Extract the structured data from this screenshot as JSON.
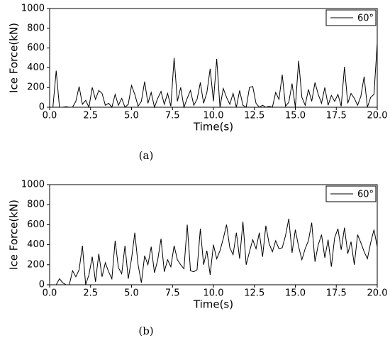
{
  "chart_data": [
    {
      "type": "line",
      "caption": "(a)",
      "xlabel": "Time(s)",
      "ylabel": "Ice Force(kN)",
      "x": [
        0,
        0.2,
        0.4,
        0.6,
        0.8,
        1.0,
        1.2,
        1.4,
        1.6,
        1.8,
        2.0,
        2.2,
        2.4,
        2.6,
        2.8,
        3.0,
        3.2,
        3.4,
        3.6,
        3.8,
        4.0,
        4.2,
        4.4,
        4.6,
        4.8,
        5.0,
        5.2,
        5.4,
        5.6,
        5.8,
        6.0,
        6.2,
        6.4,
        6.6,
        6.8,
        7.0,
        7.2,
        7.4,
        7.6,
        7.8,
        8.0,
        8.2,
        8.4,
        8.6,
        8.8,
        9.0,
        9.2,
        9.4,
        9.6,
        9.8,
        10.0,
        10.2,
        10.4,
        10.6,
        10.8,
        11.0,
        11.2,
        11.4,
        11.6,
        11.8,
        12.0,
        12.2,
        12.4,
        12.6,
        12.8,
        13.0,
        13.2,
        13.4,
        13.6,
        13.8,
        14.0,
        14.2,
        14.4,
        14.6,
        14.8,
        15.0,
        15.2,
        15.4,
        15.6,
        15.8,
        16.0,
        16.2,
        16.4,
        16.6,
        16.8,
        17.0,
        17.2,
        17.4,
        17.6,
        17.8,
        18.0,
        18.2,
        18.4,
        18.6,
        18.8,
        19.0,
        19.2,
        19.4,
        19.6,
        19.8,
        20.0
      ],
      "series": [
        {
          "name": "60°",
          "color": "#000000",
          "values": [
            0,
            0,
            370,
            0,
            0,
            5,
            0,
            0,
            60,
            210,
            30,
            70,
            0,
            200,
            80,
            170,
            140,
            20,
            40,
            0,
            130,
            20,
            90,
            0,
            30,
            220,
            130,
            10,
            60,
            260,
            40,
            150,
            0,
            90,
            160,
            30,
            140,
            10,
            500,
            60,
            200,
            0,
            90,
            170,
            20,
            80,
            250,
            40,
            150,
            390,
            60,
            490,
            0,
            190,
            100,
            30,
            140,
            0,
            170,
            20,
            0,
            200,
            210,
            40,
            0,
            20,
            0,
            10,
            0,
            150,
            80,
            330,
            10,
            50,
            240,
            0,
            470,
            100,
            20,
            180,
            60,
            250,
            130,
            40,
            200,
            20,
            120,
            60,
            130,
            10,
            410,
            40,
            140,
            90,
            20,
            110,
            310,
            0,
            100,
            130,
            650
          ]
        }
      ],
      "xlim": [
        0,
        20
      ],
      "ylim": [
        0,
        1000
      ],
      "xticks": [
        {
          "value": 0,
          "label": "0.0"
        },
        2.5,
        {
          "value": 5,
          "label": "5.0"
        },
        7.5,
        {
          "value": 10,
          "label": "10.0"
        },
        12.5,
        {
          "value": 15,
          "label": "15.0"
        },
        17.5,
        {
          "value": 20,
          "label": "20.0"
        }
      ],
      "yticks": [
        0,
        200,
        400,
        600,
        800,
        1000
      ],
      "legend": "upper right"
    },
    {
      "type": "line",
      "caption": "(b)",
      "xlabel": "Time(s)",
      "ylabel": "Ice Force(kN)",
      "x": [
        0.4,
        0.6,
        0.8,
        1.0,
        1.2,
        1.4,
        1.6,
        1.8,
        2.0,
        2.2,
        2.4,
        2.6,
        2.8,
        3.0,
        3.2,
        3.4,
        3.6,
        3.8,
        4.0,
        4.2,
        4.4,
        4.6,
        4.8,
        5.0,
        5.2,
        5.4,
        5.6,
        5.8,
        6.0,
        6.2,
        6.4,
        6.6,
        6.8,
        7.0,
        7.2,
        7.4,
        7.6,
        7.8,
        8.0,
        8.2,
        8.4,
        8.6,
        8.8,
        9.0,
        9.2,
        9.4,
        9.6,
        9.8,
        10.0,
        10.2,
        10.4,
        10.6,
        10.8,
        11.0,
        11.2,
        11.4,
        11.6,
        11.8,
        12.0,
        12.2,
        12.4,
        12.6,
        12.8,
        13.0,
        13.2,
        13.4,
        13.6,
        13.8,
        14.0,
        14.2,
        14.4,
        14.6,
        14.8,
        15.0,
        15.2,
        15.4,
        15.6,
        15.8,
        16.0,
        16.2,
        16.4,
        16.6,
        16.8,
        17.0,
        17.2,
        17.4,
        17.6,
        17.8,
        18.0,
        18.2,
        18.4,
        18.6,
        18.8,
        19.0,
        19.2,
        19.4,
        19.6,
        19.8,
        20.0
      ],
      "series": [
        {
          "name": "60°",
          "color": "#000000",
          "values": [
            0,
            60,
            20,
            0,
            0,
            140,
            80,
            150,
            390,
            0,
            100,
            280,
            30,
            310,
            80,
            220,
            130,
            60,
            440,
            170,
            110,
            390,
            60,
            260,
            520,
            200,
            20,
            290,
            200,
            380,
            120,
            250,
            460,
            130,
            250,
            180,
            390,
            250,
            200,
            160,
            600,
            140,
            130,
            150,
            560,
            200,
            340,
            100,
            400,
            260,
            340,
            460,
            600,
            370,
            300,
            520,
            260,
            630,
            200,
            330,
            450,
            360,
            520,
            280,
            590,
            410,
            330,
            440,
            360,
            370,
            490,
            660,
            320,
            550,
            380,
            250,
            360,
            440,
            620,
            230,
            400,
            500,
            270,
            450,
            180,
            470,
            560,
            350,
            570,
            310,
            430,
            200,
            500,
            420,
            330,
            260,
            420,
            550,
            380
          ]
        }
      ],
      "xlim": [
        0,
        20
      ],
      "ylim": [
        0,
        1000
      ],
      "xticks": [
        {
          "value": 0,
          "label": "0.0"
        },
        2.5,
        {
          "value": 5,
          "label": "5.0"
        },
        7.5,
        {
          "value": 10,
          "label": "10.0"
        },
        12.5,
        {
          "value": 15,
          "label": "15.0"
        },
        17.5,
        {
          "value": 20,
          "label": "20.0"
        }
      ],
      "yticks": [
        0,
        200,
        400,
        600,
        800,
        1000
      ],
      "legend": "upper right"
    }
  ]
}
